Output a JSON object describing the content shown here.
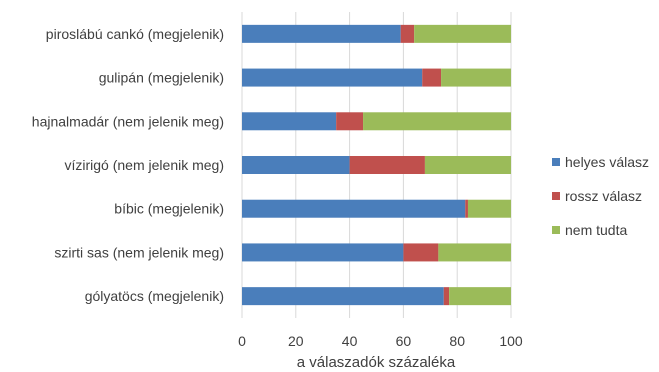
{
  "chart_data": {
    "type": "bar",
    "orientation": "horizontal",
    "stacked": true,
    "categories": [
      "piroslábú cankó  (megjelenik)",
      "gulipán (megjelenik)",
      "hajnalmadár (nem jelenik meg)",
      "vízirigó (nem jelenik meg)",
      "bíbic (megjelenik)",
      "szirti sas (nem jelenik meg)",
      "gólyatöcs (megjelenik)"
    ],
    "series": [
      {
        "name": "helyes válasz",
        "color": "#4a7ebb",
        "values": [
          59,
          67,
          35,
          40,
          83,
          60,
          75
        ]
      },
      {
        "name": "rossz válasz",
        "color": "#c0504d",
        "values": [
          5,
          7,
          10,
          28,
          1,
          13,
          2
        ]
      },
      {
        "name": "nem tudta",
        "color": "#9bbb59",
        "values": [
          36,
          26,
          55,
          32,
          16,
          27,
          23
        ]
      }
    ],
    "xlabel": "a válaszadók százaléka",
    "xlim": [
      0,
      100
    ],
    "xticks": [
      "0",
      "20",
      "40",
      "60",
      "80",
      "100"
    ],
    "grid": "vertical",
    "legend_position": "right"
  }
}
